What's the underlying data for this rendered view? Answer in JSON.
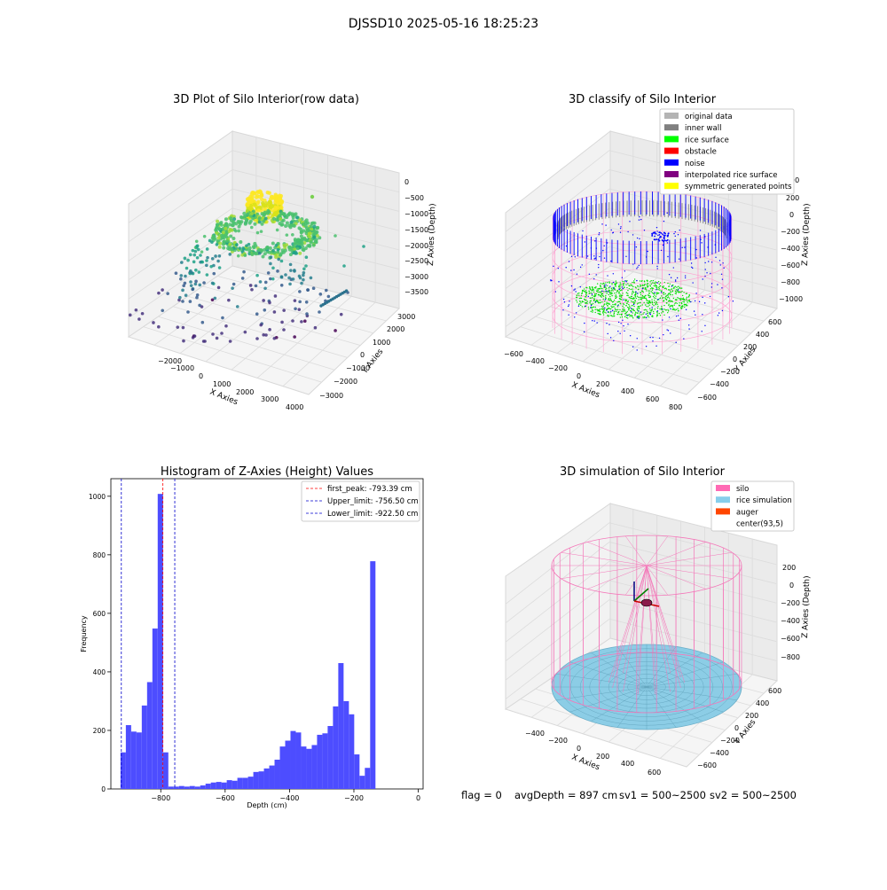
{
  "figure": {
    "suptitle": "DJSSD10 2025-05-16 18:25:23",
    "footer": {
      "flag": "flag = 0",
      "avg_depth": "avgDepth = 897 cm",
      "sv1": "sv1 = 500~2500",
      "sv2": "sv2 = 500~2500"
    }
  },
  "panel1": {
    "title": "3D Plot of Silo Interior(row data)",
    "xlabel": "X Axies",
    "ylabel": "Y Axies",
    "zlabel": "Z Axies (Depth)",
    "xticks": [
      "−2000",
      "−1000",
      "0",
      "1000",
      "2000",
      "3000",
      "4000"
    ],
    "yticks": [
      "3000",
      "2000",
      "1000",
      "0",
      "−1000",
      "−2000",
      "−3000"
    ],
    "zticks": [
      "0",
      "−500",
      "−1000",
      "−1500",
      "−2000",
      "−2500",
      "−3000",
      "−3500"
    ]
  },
  "panel2": {
    "title": "3D classify of Silo Interior",
    "xlabel": "X Axies",
    "ylabel": "Y Axies",
    "zlabel": "Z Axies (Depth)",
    "xticks": [
      "−600",
      "−400",
      "−200",
      "0",
      "200",
      "400",
      "600",
      "800"
    ],
    "yticks": [
      "600",
      "400",
      "200",
      "0",
      "−200",
      "−400",
      "−600"
    ],
    "zticks": [
      "400",
      "200",
      "0",
      "−200",
      "−400",
      "−600",
      "−800",
      "−1000"
    ],
    "legend": [
      {
        "label": "original data",
        "color": "#b4b4b4"
      },
      {
        "label": "inner wall",
        "color": "#808080"
      },
      {
        "label": "rice surface",
        "color": "#00ff00"
      },
      {
        "label": "obstacle",
        "color": "#ff0000"
      },
      {
        "label": "noise",
        "color": "#0000ff"
      },
      {
        "label": "interpolated rice surface",
        "color": "#800080"
      },
      {
        "label": "symmetric generated points",
        "color": "#ffff00"
      }
    ]
  },
  "panel4": {
    "title": "3D simulation of Silo Interior",
    "xlabel": "X Axies",
    "ylabel": "Y Axies",
    "zlabel": "Z Axies (Depth)",
    "xticks": [
      "−400",
      "−200",
      "0",
      "200",
      "400",
      "600"
    ],
    "yticks": [
      "600",
      "400",
      "200",
      "0",
      "−200",
      "−400",
      "−600"
    ],
    "zticks": [
      "200",
      "0",
      "−200",
      "−400",
      "−600",
      "−800"
    ],
    "legend": [
      {
        "label": "silo",
        "color": "#ff69b4"
      },
      {
        "label": "rice simulation",
        "color": "#87ceeb"
      },
      {
        "label": "auger",
        "color": "#ff4500"
      },
      {
        "label": "center(93,5)",
        "color": "none"
      }
    ]
  },
  "chart_data": [
    {
      "type": "scatter",
      "title": "3D Plot of Silo Interior(row data)",
      "xlabel": "X Axies",
      "ylabel": "Y Axies",
      "zlabel": "Z Axies (Depth)",
      "xlim": [
        -2500,
        4000
      ],
      "ylim": [
        -3000,
        3000
      ],
      "zlim": [
        -3800,
        200
      ],
      "colormap": "viridis",
      "grid": true
    },
    {
      "type": "scatter",
      "title": "3D classify of Silo Interior",
      "xlabel": "X Axies",
      "ylabel": "Y Axies",
      "zlabel": "Z Axies (Depth)",
      "xlim": [
        -700,
        800
      ],
      "ylim": [
        -700,
        700
      ],
      "zlim": [
        -1000,
        400
      ],
      "series": [
        {
          "name": "original data"
        },
        {
          "name": "inner wall"
        },
        {
          "name": "rice surface"
        },
        {
          "name": "obstacle"
        },
        {
          "name": "noise"
        },
        {
          "name": "interpolated rice surface"
        },
        {
          "name": "symmetric generated points"
        }
      ],
      "legend_position": "upper-right",
      "grid": true
    },
    {
      "type": "bar",
      "title": "Histogram of Z-Axies (Height) Values",
      "xlabel": "Depth (cm)",
      "ylabel": "Frequency",
      "xlim": [
        -955,
        15
      ],
      "ylim": [
        0,
        1060
      ],
      "xticks": [
        -800,
        -600,
        -400,
        -200,
        0
      ],
      "yticks": [
        0,
        200,
        400,
        600,
        800,
        1000
      ],
      "bin_start": -925,
      "bin_width": 16.5,
      "values": [
        125,
        218,
        196,
        193,
        285,
        365,
        548,
        1008,
        125,
        8,
        8,
        10,
        8,
        10,
        8,
        12,
        18,
        22,
        24,
        22,
        30,
        28,
        38,
        38,
        42,
        58,
        60,
        70,
        80,
        100,
        145,
        165,
        198,
        193,
        145,
        137,
        150,
        185,
        190,
        215,
        282,
        430,
        300,
        255,
        118,
        45,
        72,
        778
      ],
      "vlines": [
        {
          "label": "first_peak: -793.39 cm",
          "x": -793.39,
          "color": "#ff0000"
        },
        {
          "label": "Upper_limit: -756.50 cm",
          "x": -756.5,
          "color": "#0000cc"
        },
        {
          "label": "Lower_limit: -922.50 cm",
          "x": -922.5,
          "color": "#0000cc"
        }
      ],
      "bar_color": "#4d4dff",
      "legend_position": "upper-right",
      "grid": false
    },
    {
      "type": "scatter",
      "title": "3D simulation of Silo Interior",
      "xlabel": "X Axies",
      "ylabel": "Y Axies",
      "zlabel": "Z Axies (Depth)",
      "xlim": [
        -500,
        700
      ],
      "ylim": [
        -700,
        700
      ],
      "zlim": [
        -900,
        300
      ],
      "series": [
        {
          "name": "silo"
        },
        {
          "name": "rice simulation"
        },
        {
          "name": "auger"
        },
        {
          "name": "center(93,5)"
        }
      ],
      "legend_position": "upper-right",
      "grid": true
    }
  ]
}
